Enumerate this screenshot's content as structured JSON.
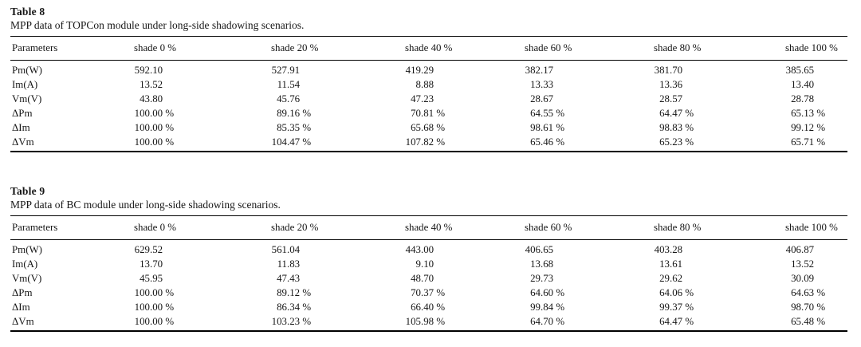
{
  "page": {
    "background_color": "#ffffff",
    "text_color": "#161616",
    "rule_color": "#000000"
  },
  "tables": [
    {
      "label": "Table 8",
      "caption": "MPP data of TOPCon module under long-side shadowing scenarios.",
      "columns": [
        "Parameters",
        "shade 0 %",
        "shade 20 %",
        "shade 40 %",
        "shade 60 %",
        "shade 80 %",
        "shade 100 %"
      ],
      "rows": [
        {
          "parameter": "Pm(W)",
          "values": [
            "592.10",
            "527.91",
            "419.29",
            "382.17",
            "381.70",
            "385.65"
          ]
        },
        {
          "parameter": "Im(A)",
          "values": [
            "13.52",
            "11.54",
            "8.88",
            "13.33",
            "13.36",
            "13.40"
          ]
        },
        {
          "parameter": "Vm(V)",
          "values": [
            "43.80",
            "45.76",
            "47.23",
            "28.67",
            "28.57",
            "28.78"
          ]
        },
        {
          "parameter": "ΔPm",
          "values": [
            "100.00 %",
            "89.16 %",
            "70.81 %",
            "64.55 %",
            "64.47 %",
            "65.13 %"
          ]
        },
        {
          "parameter": "ΔIm",
          "values": [
            "100.00 %",
            "85.35 %",
            "65.68 %",
            "98.61 %",
            "98.83 %",
            "99.12 %"
          ]
        },
        {
          "parameter": "ΔVm",
          "values": [
            "100.00 %",
            "104.47 %",
            "107.82 %",
            "65.46 %",
            "65.23 %",
            "65.71 %"
          ]
        }
      ]
    },
    {
      "label": "Table 9",
      "caption": "MPP data of BC module under long-side shadowing scenarios.",
      "columns": [
        "Parameters",
        "shade 0 %",
        "shade 20 %",
        "shade 40 %",
        "shade 60 %",
        "shade 80 %",
        "shade 100 %"
      ],
      "rows": [
        {
          "parameter": "Pm(W)",
          "values": [
            "629.52",
            "561.04",
            "443.00",
            "406.65",
            "403.28",
            "406.87"
          ]
        },
        {
          "parameter": "Im(A)",
          "values": [
            "13.70",
            "11.83",
            "9.10",
            "13.68",
            "13.61",
            "13.52"
          ]
        },
        {
          "parameter": "Vm(V)",
          "values": [
            "45.95",
            "47.43",
            "48.70",
            "29.73",
            "29.62",
            "30.09"
          ]
        },
        {
          "parameter": "ΔPm",
          "values": [
            "100.00 %",
            "89.12 %",
            "70.37 %",
            "64.60 %",
            "64.06 %",
            "64.63 %"
          ]
        },
        {
          "parameter": "ΔIm",
          "values": [
            "100.00 %",
            "86.34 %",
            "66.40 %",
            "99.84 %",
            "99.37 %",
            "98.70 %"
          ]
        },
        {
          "parameter": "ΔVm",
          "values": [
            "100.00 %",
            "103.23 %",
            "105.98 %",
            "64.70 %",
            "64.47 %",
            "65.48 %"
          ]
        }
      ]
    }
  ]
}
